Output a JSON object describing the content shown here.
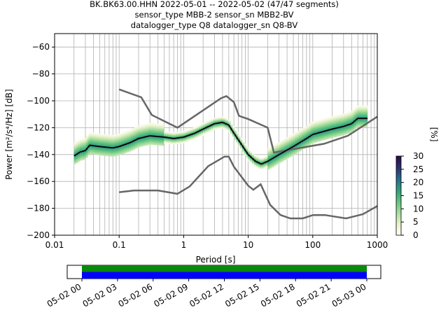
{
  "chart_data": [
    {
      "type": "heatmap",
      "title_lines": [
        "BK.BK63.00.HHN   2022-05-01 -- 2022-05-02  (47/47 segments)",
        "sensor_type MBB-2 sensor_sn MBB2-BV",
        "datalogger_type Q8 datalogger_sn Q8-BV"
      ],
      "xlabel": "Period [s]",
      "ylabel": "Power [m²/s⁴/Hz] [dB]",
      "xscale": "log",
      "xlim": [
        0.01,
        1000
      ],
      "ylim": [
        -200,
        -50
      ],
      "x_ticks": [
        0.01,
        0.1,
        1,
        10,
        100,
        1000
      ],
      "x_tick_labels": [
        "0.01",
        "0.1",
        "1",
        "10",
        "100",
        "1000"
      ],
      "y_ticks": [
        -60,
        -80,
        -100,
        -120,
        -140,
        -160,
        -180,
        -200
      ],
      "y_tick_labels": [
        "−60",
        "−80",
        "−100",
        "−120",
        "−140",
        "−160",
        "−180",
        "−200"
      ],
      "grid": true,
      "noise_model_high": {
        "x": [
          0.1,
          0.22,
          0.32,
          0.8,
          3.8,
          4.6,
          6.0,
          7.2,
          10.0,
          20.0,
          25.0,
          150.0,
          350.0,
          1000.0
        ],
        "y": [
          -91.5,
          -97.4,
          -110.5,
          -120.0,
          -98.0,
          -96.5,
          -101.0,
          -111.2,
          -113.6,
          -120.0,
          -138.5,
          -132.0,
          -126.0,
          -111.8
        ]
      },
      "noise_model_low": {
        "x": [
          0.1,
          0.17,
          0.4,
          0.8,
          1.24,
          2.4,
          4.3,
          5.0,
          6.0,
          10.0,
          12.0,
          15.6,
          21.9,
          31.6,
          45.0,
          70.0,
          101.0,
          154.0,
          328.0,
          600.0,
          1000.0
        ],
        "y": [
          -168.0,
          -166.7,
          -166.7,
          -169.2,
          -163.7,
          -148.6,
          -141.5,
          -141.5,
          -149.0,
          -163.2,
          -166.2,
          -162.1,
          -177.5,
          -185.0,
          -187.5,
          -187.5,
          -185.0,
          -185.0,
          -187.5,
          -184.4,
          -178.3
        ]
      },
      "mode_line": {
        "x": [
          0.02,
          0.025,
          0.03,
          0.035,
          0.05,
          0.08,
          0.1,
          0.15,
          0.2,
          0.3,
          0.5,
          0.7,
          1.0,
          1.5,
          2.0,
          3.0,
          4.0,
          5.0,
          6.0,
          8.0,
          10.0,
          13.0,
          16.0,
          20.0,
          30.0,
          50.0,
          80.0,
          100.0,
          200.0,
          300.0,
          400.0,
          500.0,
          700.0
        ],
        "y": [
          -141,
          -138,
          -137,
          -133,
          -134,
          -135,
          -134,
          -131,
          -128,
          -126,
          -127,
          -128,
          -127,
          -124,
          -121,
          -117,
          -116,
          -118,
          -124,
          -133,
          -140,
          -145,
          -147,
          -145,
          -140,
          -134,
          -128,
          -125,
          -121,
          -119,
          -117,
          -113,
          -113
        ]
      },
      "colorbar": {
        "label": "[%]",
        "min": 0,
        "max": 30,
        "ticks": [
          0,
          5,
          10,
          15,
          20,
          25,
          30
        ],
        "cmap": [
          "#ffffff",
          "#e7f2c3",
          "#a8dca0",
          "#5fc37e",
          "#2e9e7b",
          "#2a6a8e",
          "#2e2e6e",
          "#2a0a45"
        ]
      }
    },
    {
      "type": "timeline",
      "tick_labels": [
        "05-02 00",
        "05-02 03",
        "05-02 06",
        "05-02 09",
        "05-02 12",
        "05-02 15",
        "05-02 18",
        "05-02 21",
        "05-03 00"
      ],
      "bands": [
        {
          "color": "#0a8a0a",
          "from": 0.0,
          "to": 1.0
        },
        {
          "color": "#0000ff",
          "from": 0.0,
          "to": 1.0
        }
      ]
    }
  ]
}
